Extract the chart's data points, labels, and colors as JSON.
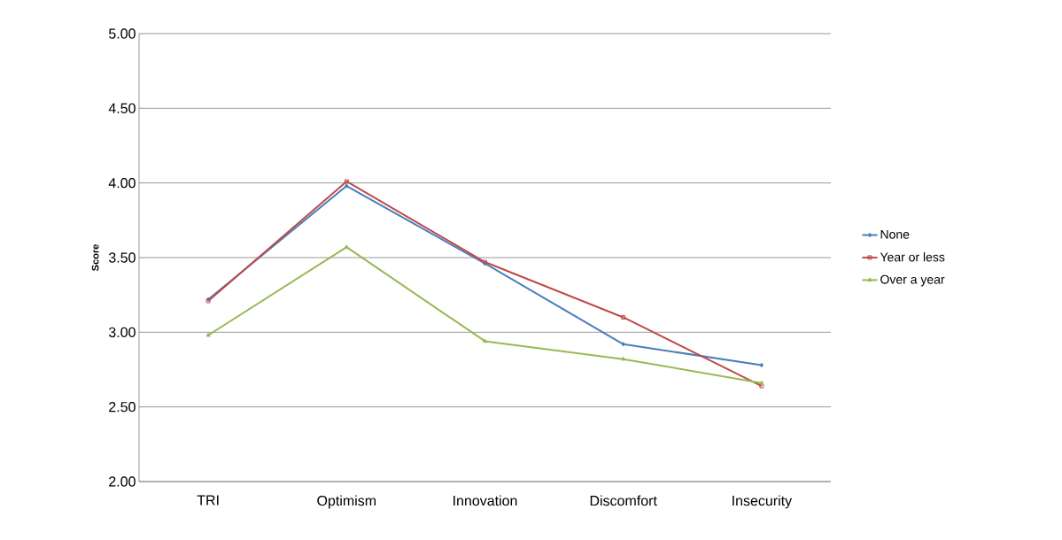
{
  "chart_data": {
    "type": "line",
    "ylabel": "Score",
    "categories": [
      "TRI",
      "Optimism",
      "Innovation",
      "Discomfort",
      "Insecurity"
    ],
    "series": [
      {
        "name": "None",
        "color": "#4a7ebb",
        "marker": "diamond",
        "values": [
          3.22,
          3.98,
          3.46,
          2.92,
          2.78
        ]
      },
      {
        "name": "Year or less",
        "color": "#be4b48",
        "marker": "square",
        "values": [
          3.21,
          4.01,
          3.47,
          3.1,
          2.64
        ]
      },
      {
        "name": "Over a year",
        "color": "#98b954",
        "marker": "triangle",
        "values": [
          2.98,
          3.57,
          2.94,
          2.82,
          2.66
        ]
      }
    ],
    "ylim": [
      2,
      5
    ],
    "yticks": [
      {
        "value": 2,
        "label": "2.00"
      },
      {
        "value": 2.5,
        "label": "2.50"
      },
      {
        "value": 3,
        "label": "3.00"
      },
      {
        "value": 3.5,
        "label": "3.50"
      },
      {
        "value": 4,
        "label": "4.00"
      },
      {
        "value": 4.5,
        "label": "4.50"
      },
      {
        "value": 5,
        "label": "5.00"
      }
    ],
    "grid": "y",
    "legend": "right",
    "line_style": "solid"
  }
}
